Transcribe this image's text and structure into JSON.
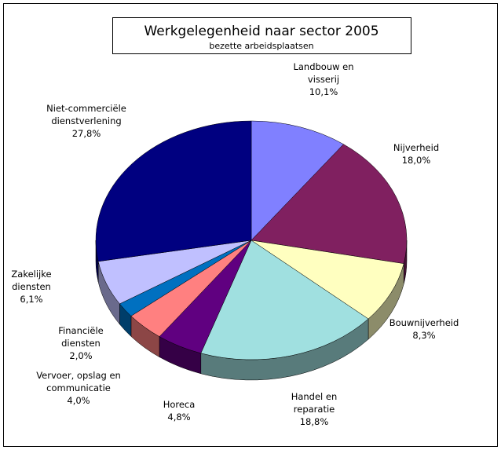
{
  "chart_data": {
    "type": "pie",
    "title": "Werkgelegenheid naar sector 2005",
    "subtitle": "bezette arbeidsplaatsen",
    "categories": [
      "Landbouw en visserij",
      "Nijverheid",
      "Bouwnijverheid",
      "Handel en reparatie",
      "Horeca",
      "Vervoer, opslag en communicatie",
      "Financiële diensten",
      "Zakelijke diensten",
      "Niet-commerciële dienstverlening"
    ],
    "values": [
      10.1,
      18.0,
      8.3,
      18.8,
      4.8,
      4.0,
      2.0,
      6.1,
      27.8
    ],
    "value_labels": [
      "10,1%",
      "18,0%",
      "8,3%",
      "18,8%",
      "4,8%",
      "4,0%",
      "2,0%",
      "6,1%",
      "27,8%"
    ],
    "colors": [
      "#8080ff",
      "#802060",
      "#ffffc0",
      "#a0e0e0",
      "#600080",
      "#ff8080",
      "#0070c0",
      "#c0c0ff",
      "#000080"
    ]
  }
}
